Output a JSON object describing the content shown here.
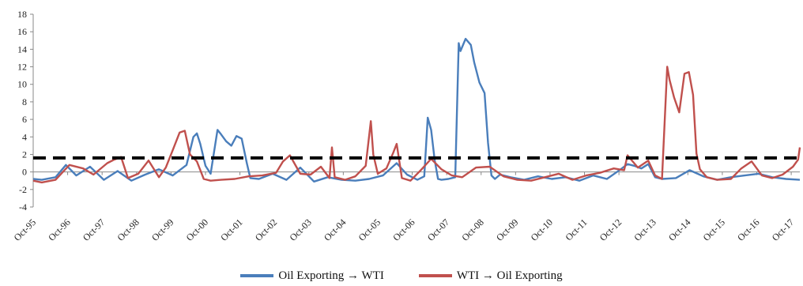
{
  "chart_data": {
    "type": "line",
    "ylim": [
      -4,
      18
    ],
    "yticks": [
      -4,
      -2,
      0,
      2,
      4,
      6,
      8,
      10,
      12,
      14,
      16,
      18
    ],
    "x_range": [
      1995.75,
      2018.0
    ],
    "x_tick_labels": [
      "Oct-95",
      "Oct-96",
      "Oct-97",
      "Oct-98",
      "Oct-99",
      "Oct-00",
      "Oct-01",
      "Oct-02",
      "Oct-03",
      "Oct-04",
      "Oct-05",
      "Oct-06",
      "Oct-07",
      "Oct-08",
      "Oct-09",
      "Oct-10",
      "Oct-11",
      "Oct-12",
      "Oct-13",
      "Oct-14",
      "Oct-15",
      "Oct-16",
      "Oct-17"
    ],
    "threshold": 1.6,
    "series": [
      {
        "name": "Oil Exporting → WTI",
        "color": "#4a7ebb",
        "x": [
          1995.75,
          1996.0,
          1996.4,
          1996.7,
          1997.0,
          1997.4,
          1997.8,
          1998.2,
          1998.6,
          1999.0,
          1999.4,
          1999.8,
          2000.2,
          2000.4,
          2000.5,
          2000.6,
          2000.75,
          2000.9,
          2001.1,
          2001.2,
          2001.35,
          2001.5,
          2001.65,
          2001.8,
          2001.95,
          2002.05,
          2002.3,
          2002.7,
          2003.1,
          2003.5,
          2003.9,
          2004.3,
          2004.7,
          2005.1,
          2005.5,
          2005.9,
          2006.3,
          2006.6,
          2006.9,
          2007.1,
          2007.2,
          2007.3,
          2007.4,
          2007.5,
          2007.6,
          2007.8,
          2008.0,
          2008.1,
          2008.15,
          2008.3,
          2008.45,
          2008.55,
          2008.7,
          2008.85,
          2008.95,
          2009.05,
          2009.15,
          2009.3,
          2009.6,
          2010.0,
          2010.4,
          2010.8,
          2011.2,
          2011.6,
          2012.0,
          2012.4,
          2012.8,
          2013.0,
          2013.2,
          2013.4,
          2013.6,
          2013.8,
          2014.0,
          2014.4,
          2014.8,
          2015.2,
          2015.6,
          2016.0,
          2016.4,
          2016.8,
          2017.2,
          2017.6,
          2018.0
        ],
        "y": [
          -0.8,
          -0.9,
          -0.6,
          0.8,
          -0.4,
          0.6,
          -0.9,
          0.1,
          -1.0,
          -0.3,
          0.3,
          -0.4,
          0.8,
          4.0,
          4.4,
          3.2,
          0.7,
          -0.2,
          4.8,
          4.3,
          3.5,
          3.0,
          4.1,
          3.8,
          1.0,
          -0.7,
          -0.8,
          -0.2,
          -0.9,
          0.5,
          -1.1,
          -0.6,
          -0.9,
          -1.0,
          -0.8,
          -0.4,
          1.0,
          -0.3,
          -0.9,
          -0.5,
          6.2,
          4.8,
          1.4,
          -0.8,
          -0.9,
          -0.8,
          -0.6,
          14.7,
          13.8,
          15.2,
          14.5,
          12.5,
          10.2,
          9.0,
          3.3,
          -0.4,
          -0.8,
          -0.3,
          -0.6,
          -0.9,
          -0.5,
          -0.8,
          -0.6,
          -1.0,
          -0.4,
          -0.8,
          0.3,
          0.9,
          0.7,
          0.4,
          0.9,
          -0.6,
          -0.8,
          -0.7,
          0.2,
          -0.5,
          -0.9,
          -0.6,
          -0.4,
          -0.2,
          -0.6,
          -0.8,
          -0.9
        ]
      },
      {
        "name": "WTI → Oil Exporting",
        "color": "#c0504d",
        "x": [
          1995.75,
          1996.0,
          1996.4,
          1996.8,
          1997.2,
          1997.5,
          1997.9,
          1998.1,
          1998.3,
          1998.5,
          1998.8,
          1999.1,
          1999.4,
          1999.6,
          1999.8,
          2000.0,
          2000.15,
          2000.3,
          2000.5,
          2000.7,
          2000.9,
          2001.2,
          2001.6,
          2002.0,
          2002.4,
          2002.8,
          2003.0,
          2003.2,
          2003.5,
          2003.8,
          2004.1,
          2004.35,
          2004.42,
          2004.5,
          2004.8,
          2005.1,
          2005.4,
          2005.55,
          2005.62,
          2005.75,
          2006.0,
          2006.2,
          2006.3,
          2006.45,
          2006.7,
          2007.0,
          2007.3,
          2007.6,
          2007.9,
          2008.2,
          2008.6,
          2009.0,
          2009.4,
          2009.8,
          2010.2,
          2010.6,
          2011.0,
          2011.4,
          2011.8,
          2012.2,
          2012.6,
          2012.9,
          2013.0,
          2013.3,
          2013.6,
          2013.8,
          2014.0,
          2014.15,
          2014.22,
          2014.35,
          2014.5,
          2014.65,
          2014.78,
          2014.9,
          2015.0,
          2015.1,
          2015.3,
          2015.6,
          2016.0,
          2016.3,
          2016.6,
          2016.9,
          2017.2,
          2017.5,
          2017.8,
          2017.95,
          2018.0
        ],
        "y": [
          -1.0,
          -1.2,
          -0.9,
          0.8,
          0.4,
          -0.3,
          1.0,
          1.4,
          1.7,
          -0.7,
          -0.2,
          1.3,
          -0.6,
          0.5,
          2.5,
          4.5,
          4.7,
          2.0,
          1.2,
          -0.8,
          -1.0,
          -0.9,
          -0.8,
          -0.5,
          -0.4,
          -0.1,
          1.2,
          1.9,
          -0.2,
          -0.3,
          0.6,
          -0.7,
          2.8,
          -0.6,
          -0.9,
          -0.5,
          0.7,
          5.8,
          2.0,
          -0.2,
          0.4,
          2.2,
          3.2,
          -0.7,
          -1.0,
          0.2,
          1.5,
          0.3,
          -0.4,
          -0.6,
          0.5,
          0.6,
          -0.5,
          -0.9,
          -1.0,
          -0.6,
          -0.2,
          -0.9,
          -0.4,
          -0.1,
          0.4,
          0.2,
          1.9,
          0.5,
          1.3,
          -0.4,
          -0.8,
          12.0,
          10.5,
          8.5,
          6.8,
          11.2,
          11.4,
          8.8,
          2.1,
          0.3,
          -0.6,
          -0.9,
          -0.8,
          0.4,
          1.2,
          -0.4,
          -0.7,
          -0.3,
          0.6,
          1.4,
          2.8
        ]
      }
    ]
  },
  "legend": {
    "items": [
      {
        "label": "Oil Exporting → WTI",
        "color": "#4a7ebb"
      },
      {
        "label": "WTI → Oil Exporting",
        "color": "#c0504d"
      }
    ]
  }
}
